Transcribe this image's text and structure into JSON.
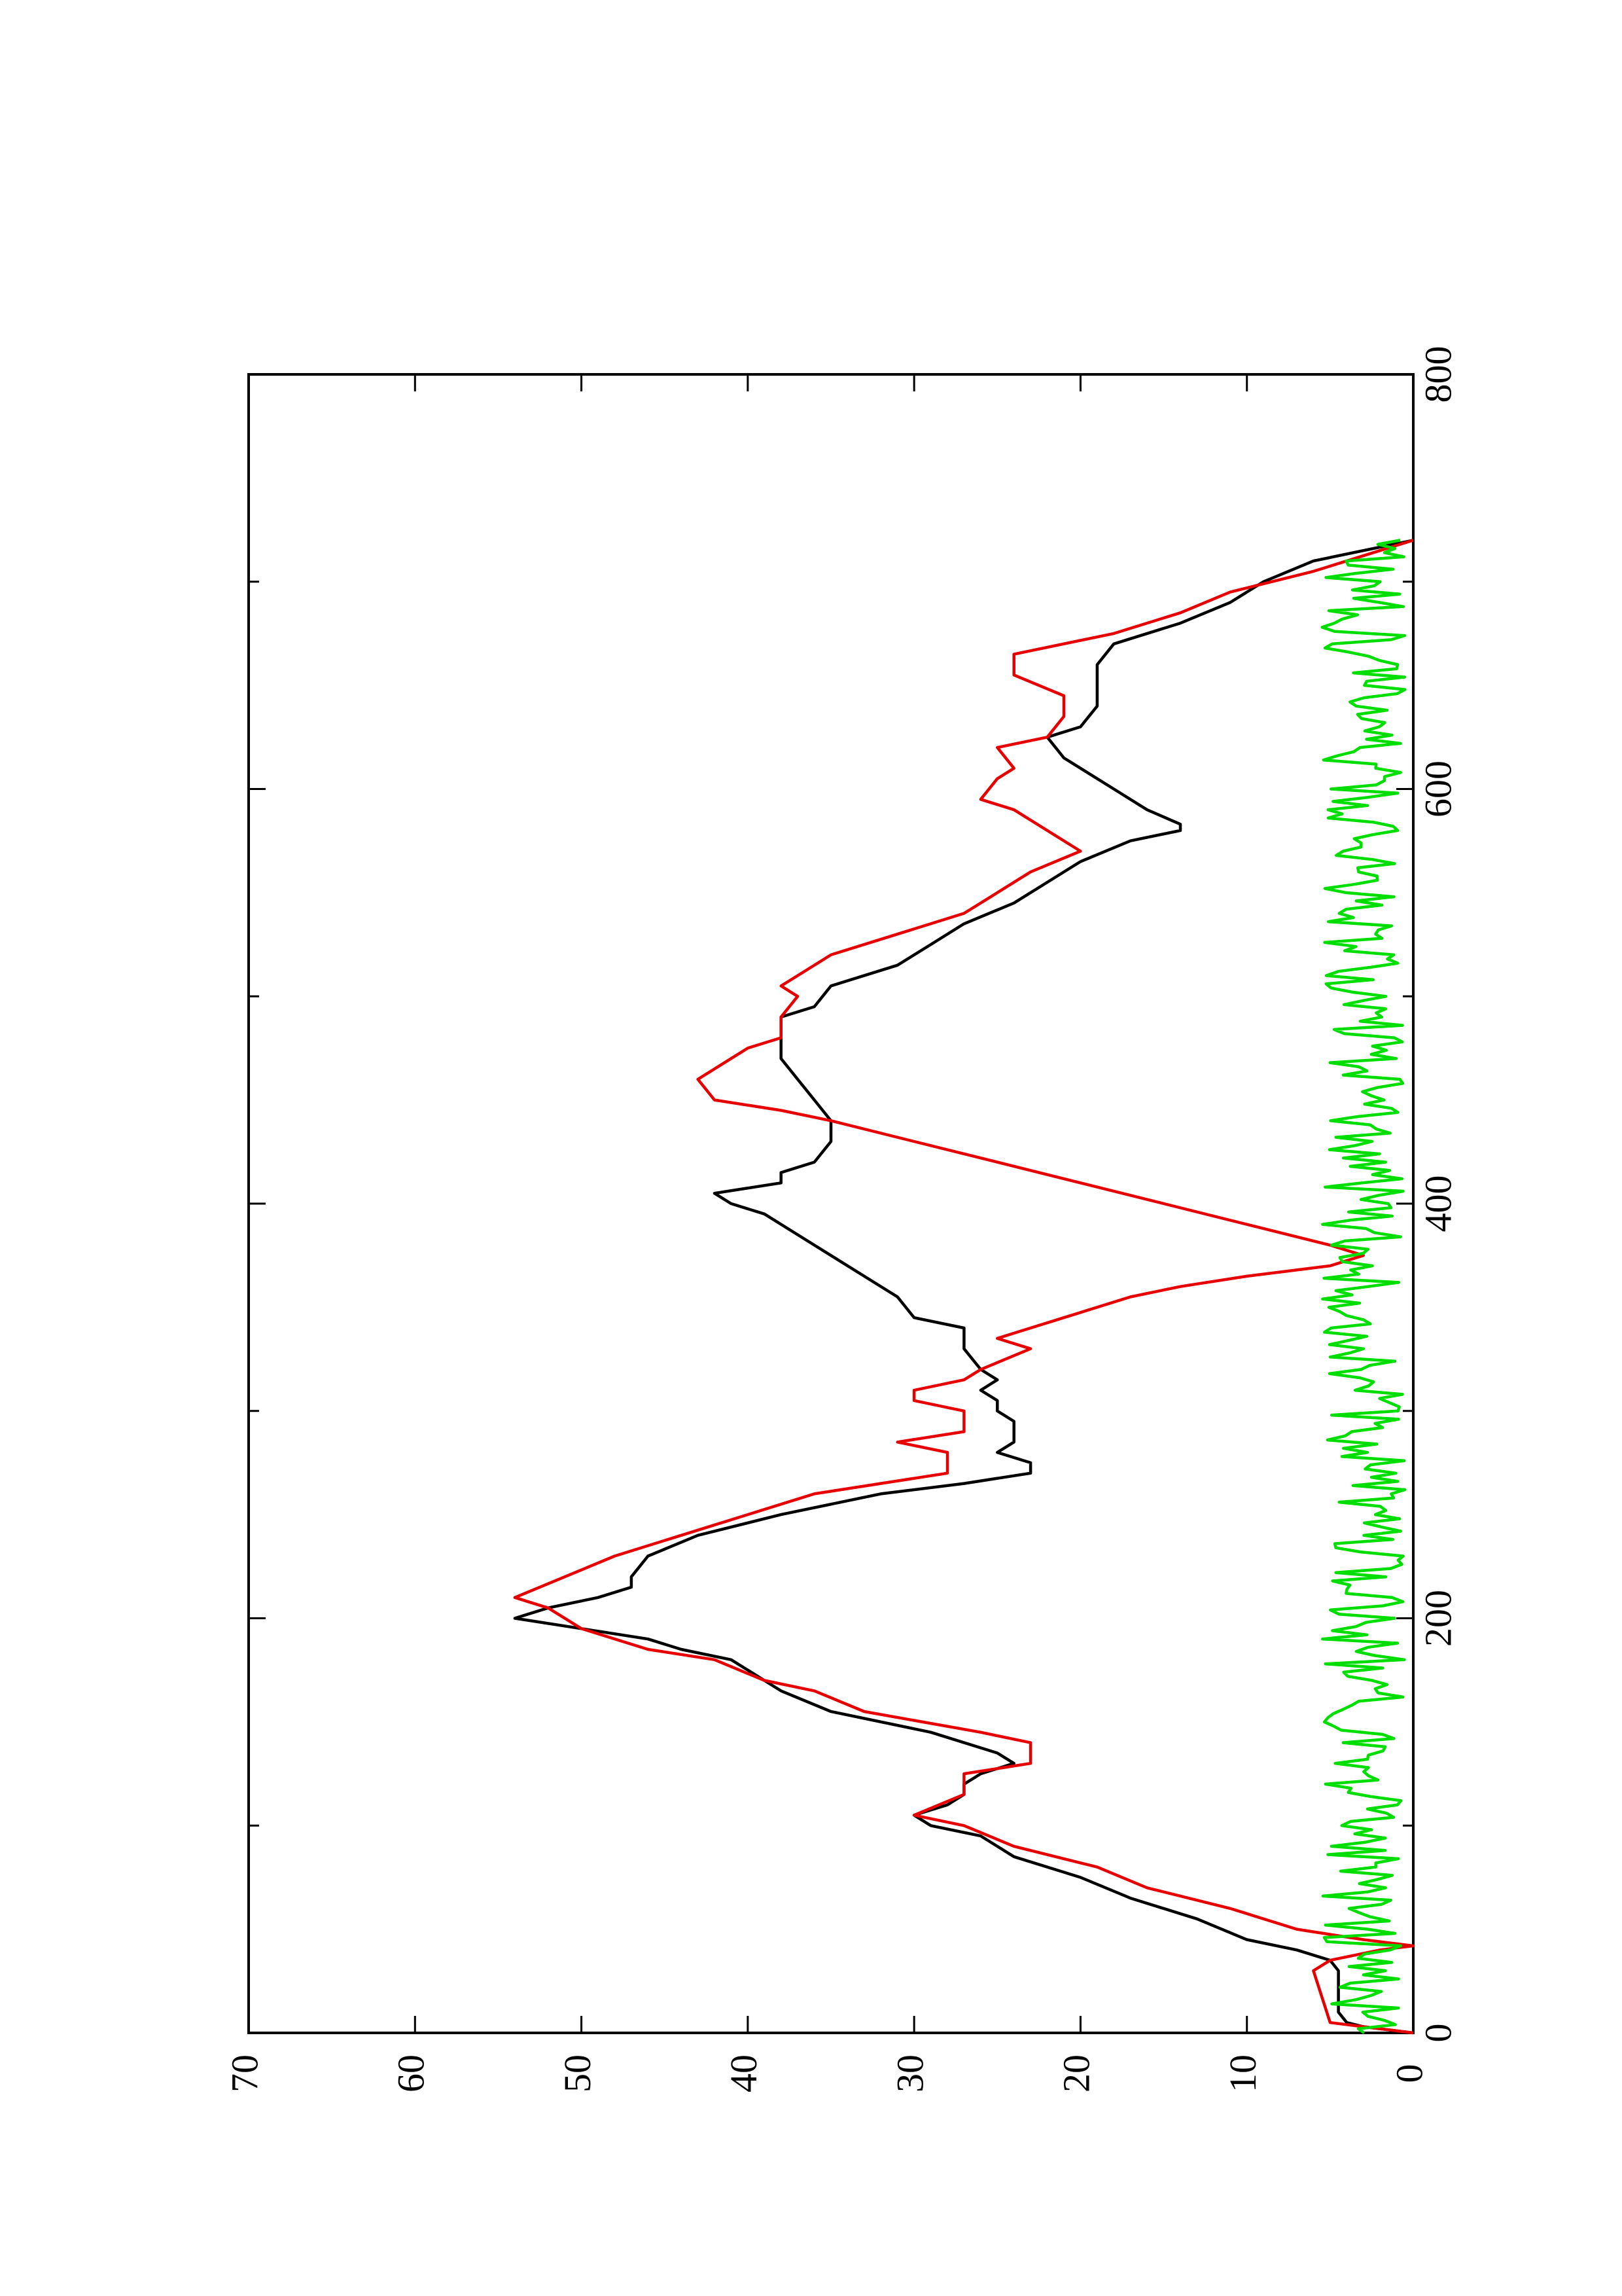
{
  "chart_data": {
    "type": "line",
    "orientation": "rotated-90-ccw",
    "title": "",
    "xlabel": "",
    "ylabel": "",
    "xlim": [
      0,
      800
    ],
    "ylim": [
      0,
      70
    ],
    "x_ticks": [
      0,
      200,
      400,
      600,
      800
    ],
    "x_minor_ticks": [
      100,
      300,
      500,
      700
    ],
    "y_ticks": [
      0,
      10,
      20,
      30,
      40,
      50,
      60,
      70
    ],
    "grid": false,
    "legend": "none",
    "series": [
      {
        "color": "#000000",
        "points": [
          [
            0,
            0
          ],
          [
            3,
            3
          ],
          [
            5,
            4
          ],
          [
            10,
            4.5
          ],
          [
            20,
            4.5
          ],
          [
            30,
            4.5
          ],
          [
            35,
            5
          ],
          [
            40,
            7
          ],
          [
            45,
            10
          ],
          [
            55,
            13
          ],
          [
            65,
            17
          ],
          [
            75,
            20
          ],
          [
            85,
            24
          ],
          [
            95,
            26
          ],
          [
            100,
            29
          ],
          [
            105,
            30
          ],
          [
            110,
            28
          ],
          [
            115,
            27
          ],
          [
            120,
            27
          ],
          [
            125,
            26
          ],
          [
            130,
            24
          ],
          [
            135,
            25
          ],
          [
            145,
            29
          ],
          [
            155,
            35
          ],
          [
            165,
            38
          ],
          [
            175,
            40
          ],
          [
            180,
            41
          ],
          [
            185,
            44
          ],
          [
            190,
            46
          ],
          [
            195,
            50
          ],
          [
            200,
            54
          ],
          [
            205,
            52
          ],
          [
            210,
            49
          ],
          [
            215,
            47
          ],
          [
            220,
            47
          ],
          [
            230,
            46
          ],
          [
            240,
            43
          ],
          [
            250,
            38
          ],
          [
            260,
            32
          ],
          [
            265,
            27
          ],
          [
            270,
            23
          ],
          [
            275,
            23
          ],
          [
            280,
            25
          ],
          [
            285,
            24
          ],
          [
            290,
            24
          ],
          [
            295,
            24
          ],
          [
            300,
            25
          ],
          [
            305,
            25
          ],
          [
            310,
            26
          ],
          [
            315,
            25
          ],
          [
            320,
            26
          ],
          [
            330,
            27
          ],
          [
            340,
            27
          ],
          [
            345,
            30
          ],
          [
            355,
            31
          ],
          [
            365,
            33
          ],
          [
            375,
            35
          ],
          [
            385,
            37
          ],
          [
            395,
            39
          ],
          [
            400,
            41
          ],
          [
            405,
            42
          ],
          [
            410,
            38
          ],
          [
            415,
            38
          ],
          [
            420,
            36
          ],
          [
            430,
            35
          ],
          [
            440,
            35
          ],
          [
            450,
            36
          ],
          [
            460,
            37
          ],
          [
            470,
            38
          ],
          [
            480,
            38
          ],
          [
            490,
            38
          ],
          [
            495,
            36
          ],
          [
            505,
            35
          ],
          [
            515,
            31
          ],
          [
            525,
            29
          ],
          [
            535,
            27
          ],
          [
            545,
            24
          ],
          [
            555,
            22
          ],
          [
            565,
            20
          ],
          [
            575,
            17
          ],
          [
            580,
            14
          ],
          [
            583,
            14
          ],
          [
            590,
            16
          ],
          [
            600,
            18
          ],
          [
            610,
            20
          ],
          [
            615,
            21
          ],
          [
            625,
            22
          ],
          [
            630,
            20
          ],
          [
            640,
            19
          ],
          [
            650,
            19
          ],
          [
            655,
            19
          ],
          [
            660,
            19
          ],
          [
            670,
            18
          ],
          [
            680,
            14
          ],
          [
            690,
            11
          ],
          [
            700,
            9
          ],
          [
            710,
            6
          ],
          [
            715,
            3
          ],
          [
            720,
            0
          ]
        ]
      },
      {
        "color": "#e60000",
        "points": [
          [
            0,
            0
          ],
          [
            3,
            3
          ],
          [
            5,
            5
          ],
          [
            30,
            6
          ],
          [
            35,
            5
          ],
          [
            40,
            2
          ],
          [
            42,
            0
          ],
          [
            45,
            3
          ],
          [
            50,
            7
          ],
          [
            60,
            11
          ],
          [
            70,
            16
          ],
          [
            80,
            19
          ],
          [
            90,
            24
          ],
          [
            100,
            27
          ],
          [
            105,
            30
          ],
          [
            115,
            27
          ],
          [
            125,
            27
          ],
          [
            130,
            23
          ],
          [
            140,
            23
          ],
          [
            145,
            26
          ],
          [
            155,
            33
          ],
          [
            165,
            36
          ],
          [
            170,
            39
          ],
          [
            180,
            42
          ],
          [
            185,
            46
          ],
          [
            195,
            50
          ],
          [
            205,
            52
          ],
          [
            210,
            54
          ],
          [
            220,
            51
          ],
          [
            230,
            48
          ],
          [
            240,
            44
          ],
          [
            250,
            40
          ],
          [
            260,
            36
          ],
          [
            270,
            28
          ],
          [
            275,
            28
          ],
          [
            280,
            28
          ],
          [
            285,
            31
          ],
          [
            290,
            27
          ],
          [
            295,
            27
          ],
          [
            300,
            27
          ],
          [
            305,
            30
          ],
          [
            310,
            30
          ],
          [
            315,
            27
          ],
          [
            320,
            26
          ],
          [
            330,
            23
          ],
          [
            335,
            25
          ],
          [
            340,
            23
          ],
          [
            345,
            21
          ],
          [
            355,
            17
          ],
          [
            360,
            14
          ],
          [
            365,
            10
          ],
          [
            370,
            5
          ],
          [
            375,
            3
          ],
          [
            380,
            5
          ],
          [
            390,
            10
          ],
          [
            400,
            15
          ],
          [
            410,
            20
          ],
          [
            420,
            25
          ],
          [
            430,
            30
          ],
          [
            440,
            35
          ],
          [
            445,
            38
          ],
          [
            450,
            42
          ],
          [
            460,
            43
          ],
          [
            470,
            41
          ],
          [
            475,
            40
          ],
          [
            480,
            38
          ],
          [
            490,
            38
          ],
          [
            500,
            37
          ],
          [
            505,
            38
          ],
          [
            510,
            37
          ],
          [
            520,
            35
          ],
          [
            530,
            31
          ],
          [
            540,
            27
          ],
          [
            550,
            25
          ],
          [
            560,
            23
          ],
          [
            570,
            20
          ],
          [
            580,
            22
          ],
          [
            590,
            24
          ],
          [
            595,
            26
          ],
          [
            605,
            25
          ],
          [
            610,
            24
          ],
          [
            620,
            25
          ],
          [
            625,
            22
          ],
          [
            635,
            21
          ],
          [
            640,
            21
          ],
          [
            645,
            21
          ],
          [
            655,
            24
          ],
          [
            665,
            24
          ],
          [
            675,
            18
          ],
          [
            685,
            14
          ],
          [
            695,
            11
          ],
          [
            705,
            6
          ],
          [
            715,
            2
          ],
          [
            720,
            0
          ]
        ]
      },
      {
        "color": "#00dd00",
        "noise_baseline": 3,
        "noise_amplitude": 2.5,
        "points": [
          [
            0,
            3
          ],
          [
            50,
            3
          ],
          [
            100,
            3
          ],
          [
            150,
            3
          ],
          [
            200,
            3
          ],
          [
            250,
            3
          ],
          [
            300,
            3
          ],
          [
            350,
            3
          ],
          [
            400,
            3
          ],
          [
            450,
            3
          ],
          [
            500,
            3
          ],
          [
            550,
            3
          ],
          [
            600,
            3
          ],
          [
            650,
            3
          ],
          [
            700,
            3
          ],
          [
            720,
            3
          ]
        ]
      }
    ]
  }
}
